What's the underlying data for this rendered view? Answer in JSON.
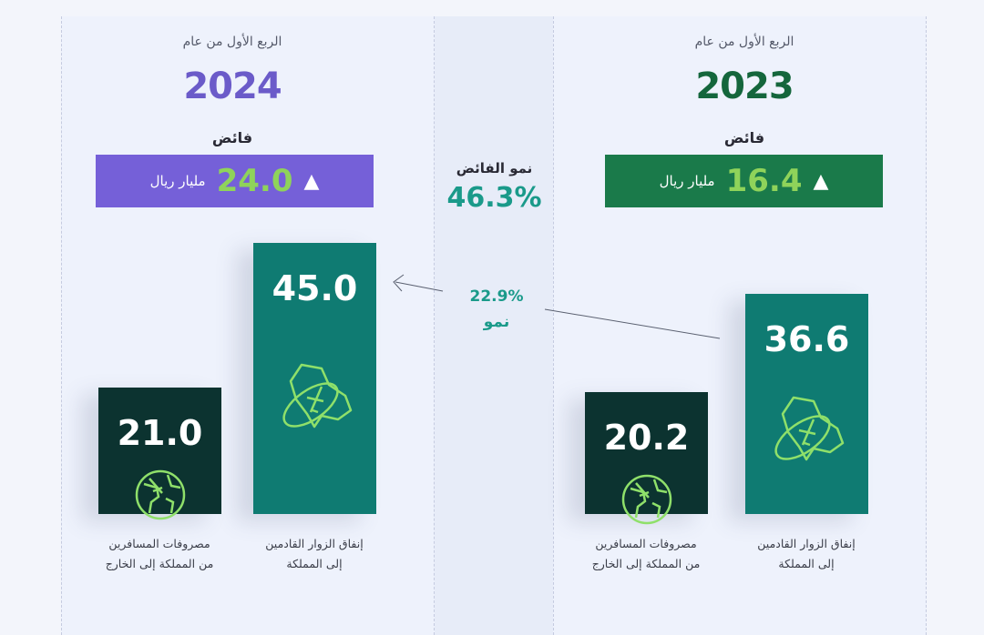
{
  "colors": {
    "purple": "#7560d8",
    "year2024": "#6b5bc9",
    "green_box": "#1a7a4a",
    "year2023": "#14663c",
    "teal_bar": "#0f7b72",
    "dark_bar": "#0c3330",
    "growth": "#1a9a8a",
    "value_green": "#8fd35a"
  },
  "panels": [
    {
      "subtitle": "الربع الأول من عام",
      "year": "2024",
      "surplus_label": "فائض",
      "surplus_value": "24.0",
      "surplus_unit": "مليار ريال",
      "arrow": "▲"
    },
    {
      "subtitle": "الربع الأول من عام",
      "year": "2023",
      "surplus_label": "فائض",
      "surplus_value": "16.4",
      "surplus_unit": "مليار ريال",
      "arrow": "▲"
    }
  ],
  "middle": {
    "surplus_growth_label": "نمو الفائض",
    "surplus_growth_value": "46.3%",
    "visitor_growth_value": "22.9%",
    "visitor_growth_label": "نمو"
  },
  "chart_data": {
    "type": "bar",
    "categories": [
      "2024",
      "2023"
    ],
    "series": [
      {
        "name": "إنفاق الزوار القادمين إلى المملكة",
        "values": [
          45.0,
          36.6
        ],
        "labels": [
          "45.0",
          "36.6"
        ],
        "icon": "saudi-map-plane-icon"
      },
      {
        "name": "مصروفات المسافرين من المملكة إلى الخارج",
        "values": [
          21.0,
          20.2
        ],
        "labels": [
          "21.0",
          "20.2"
        ],
        "icon": "globe-plane-icon"
      }
    ],
    "category_labels": {
      "inbound": [
        "إنفاق الزوار القادمين",
        "إلى المملكة"
      ],
      "outbound": [
        "مصروفات المسافرين",
        "من المملكة إلى الخارج"
      ]
    }
  }
}
